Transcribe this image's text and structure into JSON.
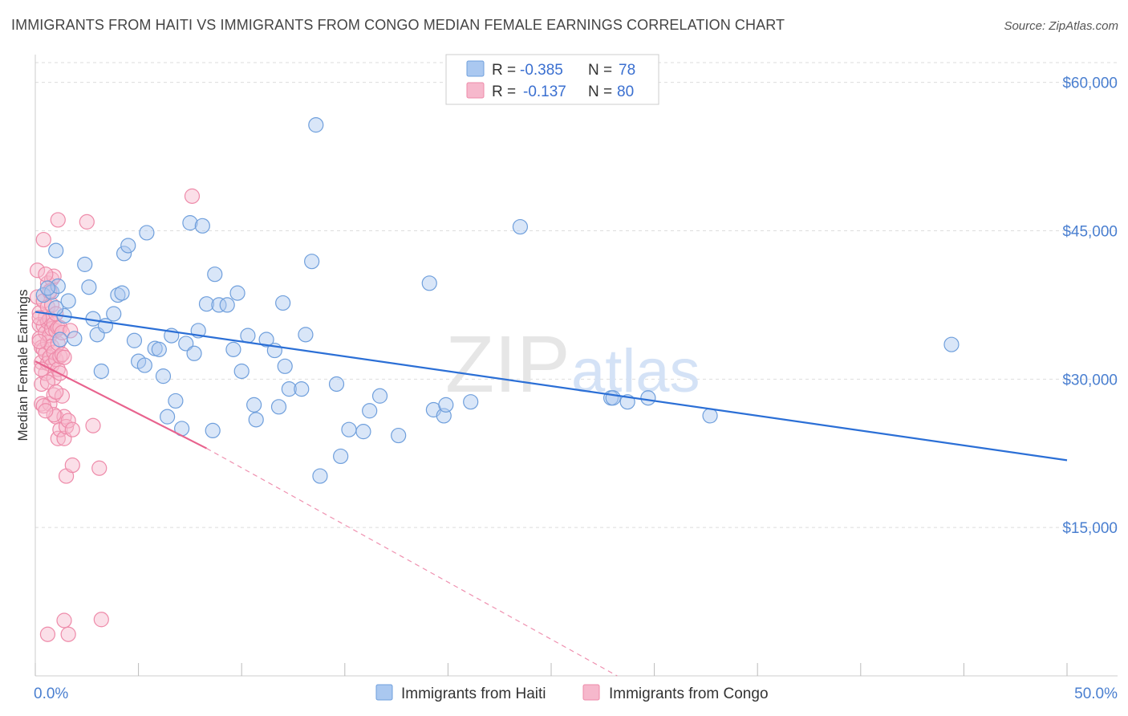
{
  "title": "IMMIGRANTS FROM HAITI VS IMMIGRANTS FROM CONGO MEDIAN FEMALE EARNINGS CORRELATION CHART",
  "source": "Source: ZipAtlas.com",
  "watermark": "ZIPatlas",
  "colors": {
    "haiti_fill": "#aac8f0",
    "haiti_stroke": "#6f9fdc",
    "haiti_line": "#2b6fd6",
    "congo_fill": "#f6b8cc",
    "congo_stroke": "#ee8aa9",
    "congo_line": "#e8638e",
    "grid": "#dddddd",
    "tick_text": "#4a7fd0"
  },
  "chart_data": {
    "type": "scatter",
    "title": "IMMIGRANTS FROM HAITI VS IMMIGRANTS FROM CONGO MEDIAN FEMALE EARNINGS CORRELATION CHART",
    "xlabel": "",
    "ylabel": "Median Female Earnings",
    "xlim": [
      0,
      50
    ],
    "ylim": [
      0,
      62000
    ],
    "x_tick_labels": [
      {
        "value": 0,
        "label": "0.0%"
      },
      {
        "value": 50,
        "label": "50.0%"
      }
    ],
    "y_tick_labels": [
      {
        "value": 15000,
        "label": "$15,000"
      },
      {
        "value": 30000,
        "label": "$30,000"
      },
      {
        "value": 45000,
        "label": "$45,000"
      },
      {
        "value": 60000,
        "label": "$60,000"
      }
    ],
    "legend": {
      "placement": "top-center",
      "entries": [
        {
          "series": "Immigrants from Haiti",
          "r_label": "R =",
          "r_value": "-0.385",
          "n_label": "N =",
          "n_value": "78"
        },
        {
          "series": "Immigrants from Congo",
          "r_label": "R =",
          "r_value": "-0.137",
          "n_label": "N =",
          "n_value": "80"
        }
      ]
    },
    "series": [
      {
        "name": "Immigrants from Haiti",
        "trend": {
          "x0": 0,
          "y0": 36800,
          "x1": 50,
          "y1": 21800,
          "dashed_to": null
        },
        "points": [
          [
            0.4,
            38500
          ],
          [
            0.8,
            38800
          ],
          [
            1.0,
            43000
          ],
          [
            1.1,
            39400
          ],
          [
            1.2,
            34000
          ],
          [
            1.4,
            36400
          ],
          [
            1.6,
            37900
          ],
          [
            1.9,
            34100
          ],
          [
            2.4,
            41600
          ],
          [
            2.6,
            39300
          ],
          [
            2.8,
            36100
          ],
          [
            3.0,
            34500
          ],
          [
            3.2,
            30800
          ],
          [
            3.4,
            35400
          ],
          [
            3.8,
            36600
          ],
          [
            4.0,
            38500
          ],
          [
            4.2,
            38700
          ],
          [
            4.3,
            42700
          ],
          [
            4.5,
            43500
          ],
          [
            4.8,
            33900
          ],
          [
            5.0,
            31800
          ],
          [
            5.3,
            31400
          ],
          [
            5.4,
            44800
          ],
          [
            5.8,
            33100
          ],
          [
            6.0,
            33000
          ],
          [
            6.2,
            30300
          ],
          [
            6.4,
            26200
          ],
          [
            6.6,
            34400
          ],
          [
            6.8,
            27800
          ],
          [
            7.1,
            25000
          ],
          [
            7.3,
            33600
          ],
          [
            7.5,
            45800
          ],
          [
            7.7,
            32600
          ],
          [
            7.9,
            34900
          ],
          [
            8.1,
            45500
          ],
          [
            8.3,
            37600
          ],
          [
            8.6,
            24800
          ],
          [
            8.7,
            40600
          ],
          [
            8.9,
            37500
          ],
          [
            9.3,
            37500
          ],
          [
            9.6,
            33000
          ],
          [
            9.8,
            38700
          ],
          [
            10.0,
            30800
          ],
          [
            10.3,
            34400
          ],
          [
            10.6,
            27400
          ],
          [
            10.7,
            25900
          ],
          [
            11.2,
            34000
          ],
          [
            11.6,
            32900
          ],
          [
            11.8,
            27200
          ],
          [
            12.0,
            37700
          ],
          [
            12.1,
            31300
          ],
          [
            12.3,
            29000
          ],
          [
            12.9,
            29000
          ],
          [
            13.1,
            34500
          ],
          [
            13.4,
            41900
          ],
          [
            13.6,
            55700
          ],
          [
            13.8,
            20200
          ],
          [
            14.6,
            29500
          ],
          [
            14.8,
            22200
          ],
          [
            15.2,
            24900
          ],
          [
            15.9,
            24700
          ],
          [
            16.2,
            26800
          ],
          [
            16.7,
            28300
          ],
          [
            17.6,
            24300
          ],
          [
            19.1,
            39700
          ],
          [
            19.3,
            26900
          ],
          [
            19.8,
            26300
          ],
          [
            19.9,
            27400
          ],
          [
            21.1,
            27700
          ],
          [
            23.5,
            45400
          ],
          [
            27.9,
            28100
          ],
          [
            28.0,
            28100
          ],
          [
            28.7,
            27700
          ],
          [
            29.7,
            28100
          ],
          [
            32.7,
            26300
          ],
          [
            44.4,
            33500
          ],
          [
            0.6,
            39200
          ],
          [
            1.0,
            37200
          ]
        ]
      },
      {
        "name": "Immigrants from Congo",
        "trend": {
          "x0": 0,
          "y0": 31800,
          "x1": 8.3,
          "y1": 23000,
          "dashed_to": {
            "x": 28.2,
            "y": 0
          }
        },
        "points": [
          [
            0.1,
            41000
          ],
          [
            0.1,
            38300
          ],
          [
            0.2,
            36700
          ],
          [
            0.2,
            35500
          ],
          [
            0.2,
            34100
          ],
          [
            0.3,
            33200
          ],
          [
            0.3,
            31700
          ],
          [
            0.3,
            29500
          ],
          [
            0.3,
            27500
          ],
          [
            0.4,
            44100
          ],
          [
            0.4,
            37900
          ],
          [
            0.4,
            35400
          ],
          [
            0.4,
            33000
          ],
          [
            0.5,
            36300
          ],
          [
            0.5,
            34700
          ],
          [
            0.5,
            32600
          ],
          [
            0.5,
            30600
          ],
          [
            0.6,
            39700
          ],
          [
            0.6,
            37300
          ],
          [
            0.6,
            35800
          ],
          [
            0.6,
            33700
          ],
          [
            0.6,
            31600
          ],
          [
            0.7,
            38800
          ],
          [
            0.7,
            36100
          ],
          [
            0.7,
            34400
          ],
          [
            0.7,
            32200
          ],
          [
            0.7,
            27500
          ],
          [
            0.8,
            40100
          ],
          [
            0.8,
            37500
          ],
          [
            0.8,
            35100
          ],
          [
            0.8,
            33300
          ],
          [
            0.8,
            31400
          ],
          [
            0.9,
            40400
          ],
          [
            0.9,
            35600
          ],
          [
            0.9,
            32700
          ],
          [
            0.9,
            30100
          ],
          [
            0.9,
            28400
          ],
          [
            1.0,
            36600
          ],
          [
            1.0,
            34900
          ],
          [
            1.0,
            32000
          ],
          [
            1.0,
            26200
          ],
          [
            1.1,
            46100
          ],
          [
            1.1,
            35200
          ],
          [
            1.1,
            33600
          ],
          [
            1.1,
            31000
          ],
          [
            1.1,
            24000
          ],
          [
            1.2,
            35200
          ],
          [
            1.2,
            32300
          ],
          [
            1.2,
            24900
          ],
          [
            1.3,
            34700
          ],
          [
            1.3,
            32500
          ],
          [
            1.3,
            28300
          ],
          [
            1.4,
            32200
          ],
          [
            1.4,
            26200
          ],
          [
            1.4,
            24000
          ],
          [
            1.5,
            25200
          ],
          [
            1.5,
            20200
          ],
          [
            1.6,
            25800
          ],
          [
            1.7,
            34900
          ],
          [
            1.8,
            24900
          ],
          [
            1.8,
            21300
          ],
          [
            2.5,
            45900
          ],
          [
            2.8,
            25300
          ],
          [
            3.1,
            21000
          ],
          [
            7.6,
            48500
          ],
          [
            1.4,
            5600
          ],
          [
            3.2,
            5700
          ],
          [
            0.6,
            4200
          ],
          [
            1.6,
            4200
          ],
          [
            0.2,
            36200
          ],
          [
            0.4,
            27300
          ],
          [
            0.9,
            26400
          ],
          [
            0.5,
            40600
          ],
          [
            0.7,
            38900
          ],
          [
            0.3,
            31000
          ],
          [
            0.6,
            29700
          ],
          [
            1.2,
            30600
          ],
          [
            0.2,
            33800
          ],
          [
            1.0,
            28700
          ],
          [
            0.5,
            26800
          ]
        ]
      }
    ]
  },
  "bottom_legend": [
    {
      "label": "Immigrants from Haiti"
    },
    {
      "label": "Immigrants from Congo"
    }
  ]
}
